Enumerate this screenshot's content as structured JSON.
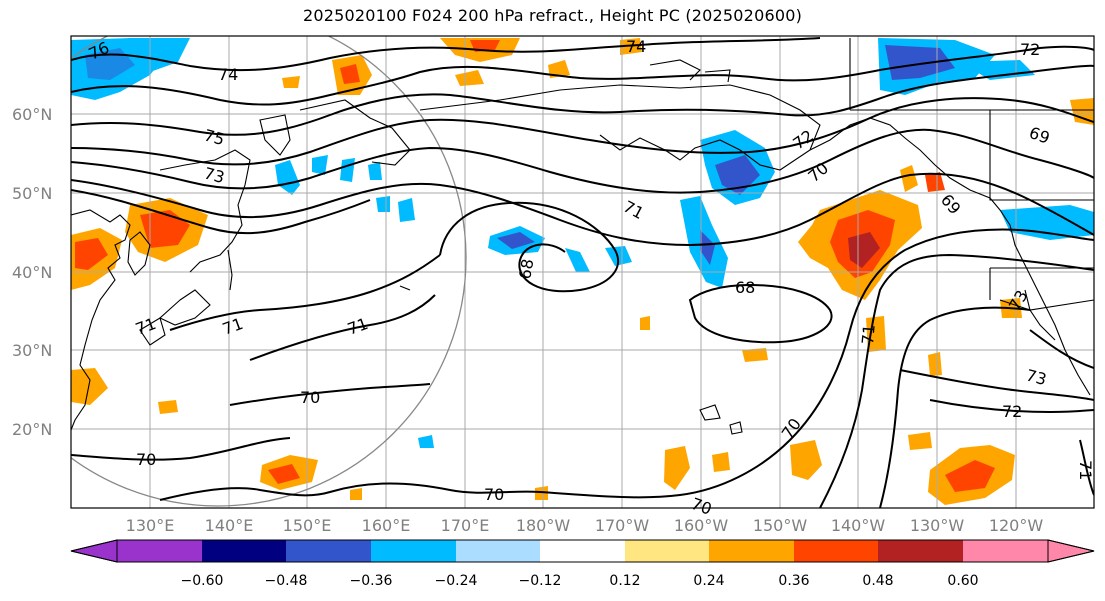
{
  "title": "2025020100 F024 200 hPa refract., Height PC (2025020600)",
  "map": {
    "lat_labels": [
      "60°N",
      "50°N",
      "40°N",
      "30°N",
      "20°N"
    ],
    "lon_labels": [
      "130°E",
      "140°E",
      "150°E",
      "160°E",
      "170°E",
      "180°W",
      "170°W",
      "160°W",
      "150°W",
      "140°W",
      "130°W",
      "120°W"
    ],
    "contour_labels": [
      "76",
      "74",
      "74",
      "75",
      "73",
      "72",
      "72",
      "70",
      "69",
      "71",
      "71",
      "71",
      "69",
      "68",
      "68",
      "71",
      "70",
      "70",
      "70",
      "70",
      "70",
      "72",
      "73",
      "73",
      "71",
      "71"
    ]
  },
  "colorbar": {
    "ticks": [
      "−0.60",
      "−0.48",
      "−0.36",
      "−0.24",
      "−0.12",
      "0.12",
      "0.24",
      "0.36",
      "0.48",
      "0.60"
    ],
    "colors": [
      "#9933cc",
      "#000080",
      "#3355cc",
      "#00bbff",
      "#aaddff",
      "#ffffff",
      "#ffe680",
      "#ffa500",
      "#ff4400",
      "#b22222",
      "#ff88aa"
    ]
  }
}
